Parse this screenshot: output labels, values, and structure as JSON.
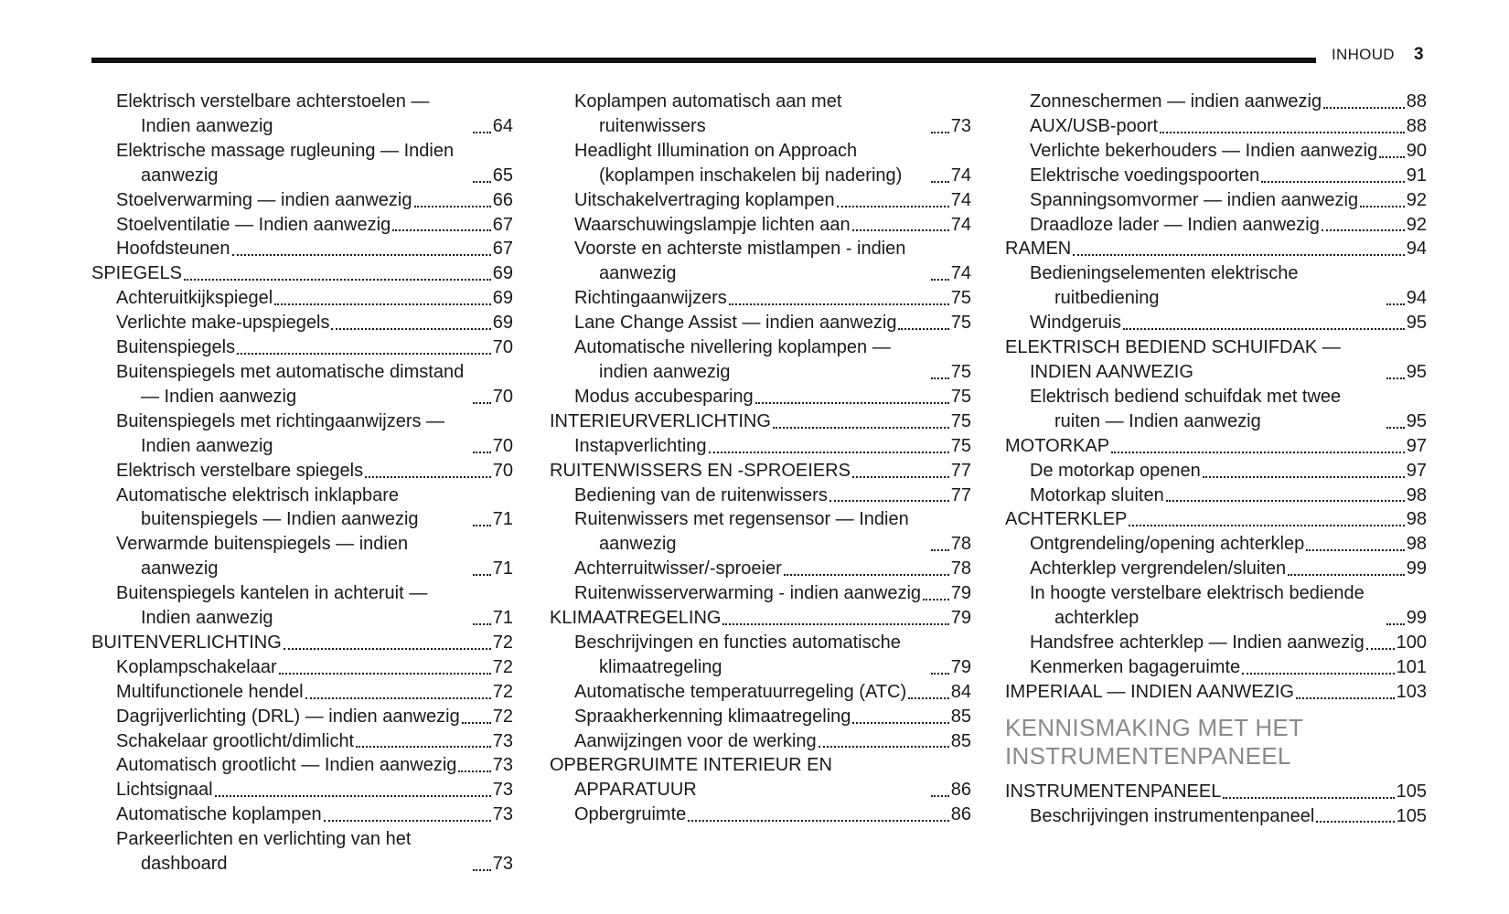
{
  "header": {
    "section": "INHOUD",
    "page": "3"
  },
  "columns": [
    [
      {
        "items": [
          {
            "title": "Elektrisch verstelbare achterstoelen — Indien aanwezig",
            "page": "64"
          },
          {
            "title": "Elektrische massage rugleuning — Indien aanwezig",
            "page": "65"
          },
          {
            "title": "Stoelverwarming — indien aanwezig",
            "page": "66"
          },
          {
            "title": "Stoelventilatie — Indien aanwezig",
            "page": "67"
          },
          {
            "title": "Hoofdsteunen",
            "page": "67"
          }
        ]
      },
      {
        "heading": {
          "title": "SPIEGELS",
          "page": "69"
        },
        "items": [
          {
            "title": "Achteruitkijkspiegel",
            "page": "69"
          },
          {
            "title": "Verlichte make-upspiegels",
            "page": "69"
          },
          {
            "title": "Buitenspiegels",
            "page": "70"
          },
          {
            "title": "Buitenspiegels met automatische dimstand — Indien aanwezig",
            "page": "70"
          },
          {
            "title": "Buitenspiegels met richtingaanwijzers — Indien aanwezig",
            "page": "70"
          },
          {
            "title": "Elektrisch verstelbare spiegels",
            "page": "70"
          },
          {
            "title": "Automatische elektrisch inklapbare buitenspiegels — Indien aanwezig",
            "page": "71"
          },
          {
            "title": "Verwarmde buitenspiegels — indien aanwezig",
            "page": "71"
          },
          {
            "title": "Buitenspiegels kantelen in achteruit — Indien aanwezig",
            "page": "71"
          }
        ]
      },
      {
        "heading": {
          "title": "BUITENVERLICHTING",
          "page": "72"
        },
        "items": [
          {
            "title": "Koplampschakelaar",
            "page": "72"
          },
          {
            "title": "Multifunctionele hendel",
            "page": "72"
          },
          {
            "title": "Dagrijverlichting (DRL) — indien aanwezig",
            "page": "72"
          },
          {
            "title": "Schakelaar grootlicht/dimlicht",
            "page": "73"
          },
          {
            "title": "Automatisch grootlicht — Indien aanwezig",
            "page": "73"
          },
          {
            "title": "Lichtsignaal",
            "page": "73"
          },
          {
            "title": "Automatische koplampen",
            "page": "73"
          },
          {
            "title": "Parkeerlichten en verlichting van het dashboard",
            "page": "73"
          }
        ]
      }
    ],
    [
      {
        "items": [
          {
            "title": "Koplampen automatisch aan met ruitenwissers",
            "page": "73"
          },
          {
            "title": "Headlight Illumination on Approach (koplampen inschakelen bij nadering)",
            "page": "74"
          },
          {
            "title": "Uitschakelvertraging koplampen",
            "page": "74"
          },
          {
            "title": "Waarschuwingslampje lichten aan",
            "page": "74"
          },
          {
            "title": "Voorste en achterste mistlampen - indien aanwezig",
            "page": "74"
          },
          {
            "title": "Richtingaanwijzers",
            "page": "75"
          },
          {
            "title": "Lane Change Assist — indien aanwezig",
            "page": "75"
          },
          {
            "title": "Automatische nivellering koplampen — indien aanwezig",
            "page": "75"
          },
          {
            "title": "Modus accubesparing",
            "page": "75"
          }
        ]
      },
      {
        "heading": {
          "title": "INTERIEURVERLICHTING",
          "page": "75"
        },
        "items": [
          {
            "title": "Instapverlichting",
            "page": "75"
          }
        ]
      },
      {
        "heading": {
          "title": "RUITENWISSERS EN -SPROEIERS",
          "page": "77"
        },
        "items": [
          {
            "title": "Bediening van de ruitenwissers",
            "page": "77"
          },
          {
            "title": "Ruitenwissers met regensensor — Indien aanwezig",
            "page": "78"
          },
          {
            "title": "Achterruitwisser/-sproeier",
            "page": "78"
          },
          {
            "title": "Ruitenwisserverwarming - indien aanwezig",
            "page": "79"
          }
        ]
      },
      {
        "heading": {
          "title": "KLIMAATREGELING",
          "page": "79"
        },
        "items": [
          {
            "title": "Beschrijvingen en functies automatische klimaatregeling",
            "page": "79"
          },
          {
            "title": "Automatische temperatuurregeling (ATC)",
            "page": "84"
          },
          {
            "title": "Spraakherkenning klimaatregeling",
            "page": "85"
          },
          {
            "title": "Aanwijzingen voor de werking",
            "page": "85"
          }
        ]
      },
      {
        "heading": {
          "title": "OPBERGRUIMTE INTERIEUR EN APPARATUUR",
          "page": "86"
        },
        "items": [
          {
            "title": "Opbergruimte",
            "page": "86"
          }
        ]
      }
    ],
    [
      {
        "items": [
          {
            "title": "Zonneschermen — indien aanwezig",
            "page": "88"
          },
          {
            "title": "AUX/USB-poort",
            "page": "88"
          },
          {
            "title": "Verlichte bekerhouders — Indien aanwezig",
            "page": "90"
          },
          {
            "title": "Elektrische voedingspoorten",
            "page": "91"
          },
          {
            "title": "Spanningsomvormer — indien aanwezig",
            "page": "92"
          },
          {
            "title": "Draadloze lader — Indien aanwezig",
            "page": "92"
          }
        ]
      },
      {
        "heading": {
          "title": "RAMEN",
          "page": "94"
        },
        "items": [
          {
            "title": "Bedieningselementen elektrische ruitbediening",
            "page": "94"
          },
          {
            "title": "Windgeruis",
            "page": "95"
          }
        ]
      },
      {
        "heading": {
          "title": "ELEKTRISCH BEDIEND SCHUIFDAK — INDIEN AANWEZIG",
          "page": "95"
        },
        "items": [
          {
            "title": "Elektrisch bediend schuifdak met twee ruiten — Indien aanwezig",
            "page": "95"
          }
        ]
      },
      {
        "heading": {
          "title": "MOTORKAP",
          "page": "97"
        },
        "items": [
          {
            "title": "De motorkap openen",
            "page": "97"
          },
          {
            "title": "Motorkap sluiten",
            "page": "98"
          }
        ]
      },
      {
        "heading": {
          "title": "ACHTERKLEP",
          "page": "98"
        },
        "items": [
          {
            "title": "Ontgrendeling/opening achterklep",
            "page": "98"
          },
          {
            "title": "Achterklep vergrendelen/sluiten",
            "page": "99"
          },
          {
            "title": "In hoogte verstelbare elektrisch bediende achterklep",
            "page": "99"
          },
          {
            "title": "Handsfree achterklep — Indien aanwezig",
            "page": "100"
          },
          {
            "title": "Kenmerken bagageruimte",
            "page": "101"
          }
        ]
      },
      {
        "heading": {
          "title": "IMPERIAAL — INDIEN AANWEZIG",
          "page": "103"
        },
        "items": []
      },
      {
        "chapter": "KENNISMAKING MET HET INSTRUMENTENPANEEL",
        "heading": {
          "title": "INSTRUMENTENPANEEL",
          "page": "105"
        },
        "items": [
          {
            "title": "Beschrijvingen instrumentenpaneel",
            "page": "105"
          }
        ]
      }
    ]
  ]
}
